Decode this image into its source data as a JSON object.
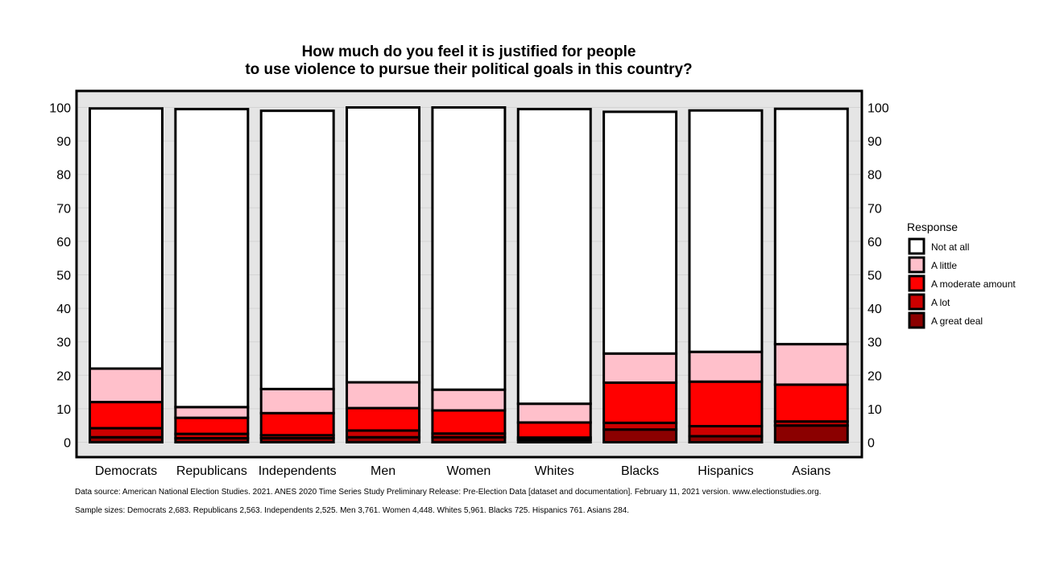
{
  "chart_data": {
    "type": "bar",
    "stacked": true,
    "title": [
      "How much do you feel it is justified for people",
      "to use violence to pursue their political goals in this country?"
    ],
    "xlabel": "",
    "ylabel": "",
    "ylim": [
      0,
      100
    ],
    "yticks": [
      0,
      10,
      20,
      30,
      40,
      50,
      60,
      70,
      80,
      90,
      100
    ],
    "grid": true,
    "legend_position": "right",
    "legend_title": "Response",
    "categories": [
      "Democrats",
      "Republicans",
      "Independents",
      "Men",
      "Women",
      "Whites",
      "Blacks",
      "Hispanics",
      "Asians"
    ],
    "series": [
      {
        "name": "A great deal",
        "color": "#8b0000",
        "values": [
          1.5,
          1.2,
          1.2,
          1.5,
          1.5,
          0.7,
          3.8,
          1.8,
          5.0
        ]
      },
      {
        "name": "A lot",
        "color": "#cc0000",
        "values": [
          2.7,
          1.3,
          0.9,
          2.0,
          1.1,
          0.7,
          2.0,
          3.0,
          1.2
        ]
      },
      {
        "name": "A moderate amount",
        "color": "#ff0000",
        "values": [
          7.8,
          4.8,
          6.6,
          6.7,
          6.9,
          4.5,
          12.0,
          13.3,
          11.0
        ]
      },
      {
        "name": "A little",
        "color": "#ffc0cb",
        "values": [
          10.0,
          3.2,
          7.2,
          7.7,
          6.2,
          5.6,
          8.7,
          8.9,
          12.1
        ]
      },
      {
        "name": "Not at all",
        "color": "#ffffff",
        "values": [
          77.7,
          89.0,
          83.1,
          82.1,
          84.3,
          88.0,
          72.2,
          72.1,
          70.3
        ]
      }
    ],
    "legend_order": [
      "Not at all",
      "A little",
      "A moderate amount",
      "A lot",
      "A great deal"
    ]
  },
  "notes": {
    "source": "Data source: American National Election Studies. 2021. ANES 2020 Time Series Study Preliminary Release: Pre-Election Data [dataset and documentation]. February 11, 2021 version. www.electionstudies.org.",
    "sample": "Sample sizes: Democrats 2,683. Republicans 2,563. Independents 2,525. Men 3,761. Women 4,448. Whites 5,961. Blacks 725. Hispanics 761. Asians 284."
  }
}
